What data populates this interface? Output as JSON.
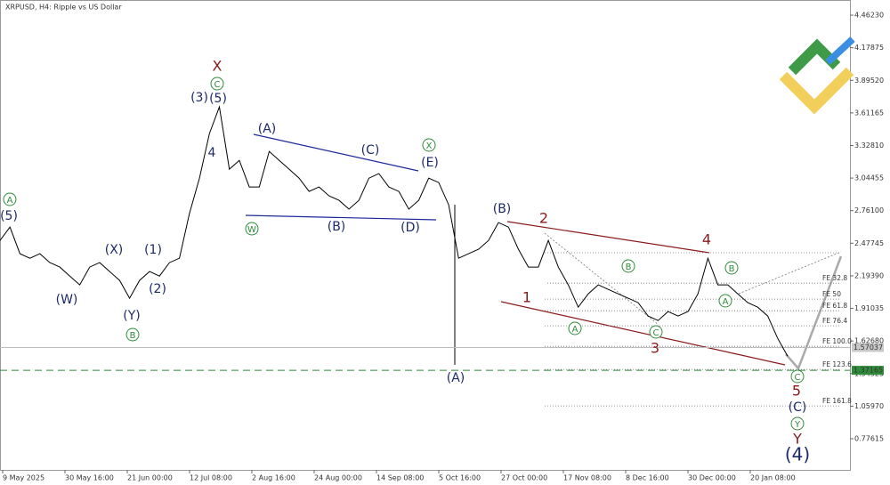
{
  "chart_data": {
    "type": "line",
    "title": "XRPUSD, H4:  Ripple vs US Dollar",
    "color": "#000000",
    "values": [
      2.502,
      2.618,
      2.386,
      2.347,
      2.386,
      2.309,
      2.27,
      2.192,
      2.115,
      2.27,
      2.309,
      2.231,
      2.154,
      1.999,
      2.154,
      2.231,
      2.192,
      2.309,
      2.347,
      2.735,
      3.044,
      3.432,
      3.664,
      3.122,
      3.199,
      2.967,
      2.967,
      3.277,
      3.199,
      3.122,
      3.044,
      2.928,
      2.967,
      2.89,
      2.851,
      2.774,
      2.851,
      3.044,
      3.083,
      2.967,
      2.928,
      2.774,
      2.851,
      3.044,
      3.006,
      2.812,
      2.347,
      2.386,
      2.425,
      2.502,
      2.657,
      2.618,
      2.425,
      2.27,
      2.27,
      2.502,
      2.27,
      2.115,
      1.921,
      2.037,
      2.115,
      2.076,
      2.037,
      1.999,
      1.96,
      1.844,
      1.805,
      1.883,
      1.844,
      1.883,
      2.037,
      2.347,
      2.115,
      2.115,
      2.037,
      1.96,
      1.921,
      1.844,
      1.65,
      1.495
    ],
    "xtick_labels": [
      "9 May 2025",
      "30 May 16:00",
      "21 Jun 00:00",
      "12 Jul 08:00",
      "2 Aug 16:00",
      "24 Aug 00:00",
      "14 Sep 08:00",
      "5 Oct 16:00",
      "27 Oct 00:00",
      "17 Nov 08:00",
      "8 Dec 16:00",
      "30 Dec 00:00",
      "20 Jan 08:00"
    ],
    "ylim": [
      0.5051,
      4.5942
    ],
    "yticks": [
      {
        "value": 4.4623,
        "label": "4.46230"
      },
      {
        "value": 4.17875,
        "label": "4.17875"
      },
      {
        "value": 3.8952,
        "label": "3.89520"
      },
      {
        "value": 3.61165,
        "label": "3.61165"
      },
      {
        "value": 3.3281,
        "label": "3.32810"
      },
      {
        "value": 3.04455,
        "label": "3.04455"
      },
      {
        "value": 2.761,
        "label": "2.76100"
      },
      {
        "value": 2.47745,
        "label": "2.47745"
      },
      {
        "value": 2.1939,
        "label": "2.19390"
      },
      {
        "value": 1.91035,
        "label": "1.91035"
      },
      {
        "value": 1.6268,
        "label": "1.62680"
      },
      {
        "value": 1.34325,
        "label": "1.34325"
      },
      {
        "value": 1.0597,
        "label": "1.05970"
      },
      {
        "value": 0.77615,
        "label": "0.77615"
      }
    ],
    "current_price": {
      "value": 1.57037,
      "label": "1.57037"
    },
    "target_level": {
      "value": 1.37165,
      "label": "1.37165"
    },
    "fib_levels": [
      {
        "value": 2.13,
        "label": "FE 32.8"
      },
      {
        "value": 1.991,
        "label": "FE 50"
      },
      {
        "value": 1.89,
        "label": "FE 61.8"
      },
      {
        "value": 1.759,
        "label": "FE 76.4"
      },
      {
        "value": 1.58,
        "label": "FE 100.0"
      },
      {
        "value": 1.379,
        "label": "FE 123.6"
      },
      {
        "value": 1.062,
        "label": "FE 161.8"
      }
    ],
    "annotations": [
      "X",
      "2",
      "4",
      "1",
      "3",
      "5",
      "Y",
      "(5)",
      "(W)",
      "(X)",
      "(1)",
      "(2)",
      "(Y)",
      "(3)",
      "(5)",
      "4",
      "(A)",
      "(C)",
      "(E)",
      "(B)",
      "(D)",
      "(A)",
      "(B)",
      "(C)",
      "(4)",
      "A",
      "C",
      "B",
      "W",
      "X",
      "B",
      "B",
      "A",
      "A",
      "C",
      "C",
      "Y"
    ]
  }
}
